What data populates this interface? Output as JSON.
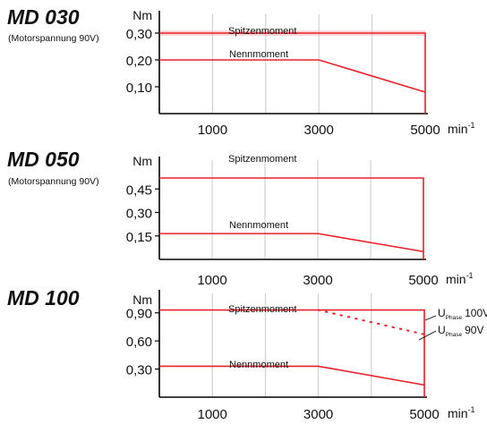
{
  "colors": {
    "curve": "#e8202a",
    "axis": "#000000",
    "grid": "#c8c8c8",
    "peak_band": "#f4b6ba"
  },
  "chart_data": [
    {
      "type": "line",
      "title": "MD 030",
      "subtitle": "(Motorspannung 90V)",
      "ylabel": "Nm",
      "xunit_base": "min",
      "xunit_exp": "-1",
      "xlim": [
        0,
        5000
      ],
      "ylim": [
        0,
        0.35
      ],
      "xticks": [
        1000,
        3000,
        5000
      ],
      "xtick_labels": [
        "1000",
        "3000",
        "5000"
      ],
      "yticks": [
        0.1,
        0.2,
        0.3
      ],
      "ytick_labels": [
        "0,10",
        "0,20",
        "0,30"
      ],
      "grid": true,
      "series": [
        {
          "name": "Spitzenmoment",
          "x": [
            0,
            5000,
            5000
          ],
          "y": [
            0.3,
            0.3,
            0
          ],
          "style": "solid"
        },
        {
          "name": "Nennmoment",
          "x": [
            0,
            3000,
            5000
          ],
          "y": [
            0.2,
            0.2,
            0.08
          ],
          "style": "solid"
        }
      ]
    },
    {
      "type": "line",
      "title": "MD 050",
      "subtitle": "(Motorspannung 90V)",
      "ylabel": "Nm",
      "xunit_base": "min",
      "xunit_exp": "-1",
      "xlim": [
        0,
        5000
      ],
      "ylim": [
        0,
        0.6
      ],
      "xticks": [
        1000,
        3000,
        5000
      ],
      "xtick_labels": [
        "1000",
        "3000",
        "5000"
      ],
      "yticks": [
        0.15,
        0.3,
        0.45
      ],
      "ytick_labels": [
        "0,15",
        "0,30",
        "0,45"
      ],
      "grid": true,
      "series": [
        {
          "name": "Spitzenmoment",
          "x": [
            0,
            5000,
            5000
          ],
          "y": [
            0.52,
            0.52,
            0
          ],
          "style": "solid"
        },
        {
          "name": "Nennmoment",
          "x": [
            0,
            3000,
            5000
          ],
          "y": [
            0.165,
            0.165,
            0.05
          ],
          "style": "solid"
        }
      ]
    },
    {
      "type": "line",
      "title": "MD 100",
      "subtitle": "",
      "ylabel": "Nm",
      "xunit_base": "min",
      "xunit_exp": "-1",
      "xlim": [
        0,
        5000
      ],
      "ylim": [
        0,
        1.05
      ],
      "xticks": [
        1000,
        3000,
        5000
      ],
      "xtick_labels": [
        "1000",
        "3000",
        "5000"
      ],
      "yticks": [
        0.3,
        0.6,
        0.9
      ],
      "ytick_labels": [
        "0,30",
        "0,60",
        "0,90"
      ],
      "grid": true,
      "series": [
        {
          "name": "Spitzenmoment",
          "x": [
            0,
            5000,
            5000
          ],
          "y": [
            0.93,
            0.93,
            0
          ],
          "style": "solid"
        },
        {
          "name": "",
          "x": [
            3000,
            5000
          ],
          "y": [
            0.93,
            0.67
          ],
          "style": "dotted"
        },
        {
          "name": "Nennmoment",
          "x": [
            0,
            3000,
            5000
          ],
          "y": [
            0.33,
            0.33,
            0.13
          ],
          "style": "solid"
        }
      ],
      "annotations": [
        {
          "base": "U",
          "sub": "Phase",
          "value": "100V"
        },
        {
          "base": "U",
          "sub": "Phase",
          "value": "90V"
        }
      ]
    }
  ]
}
